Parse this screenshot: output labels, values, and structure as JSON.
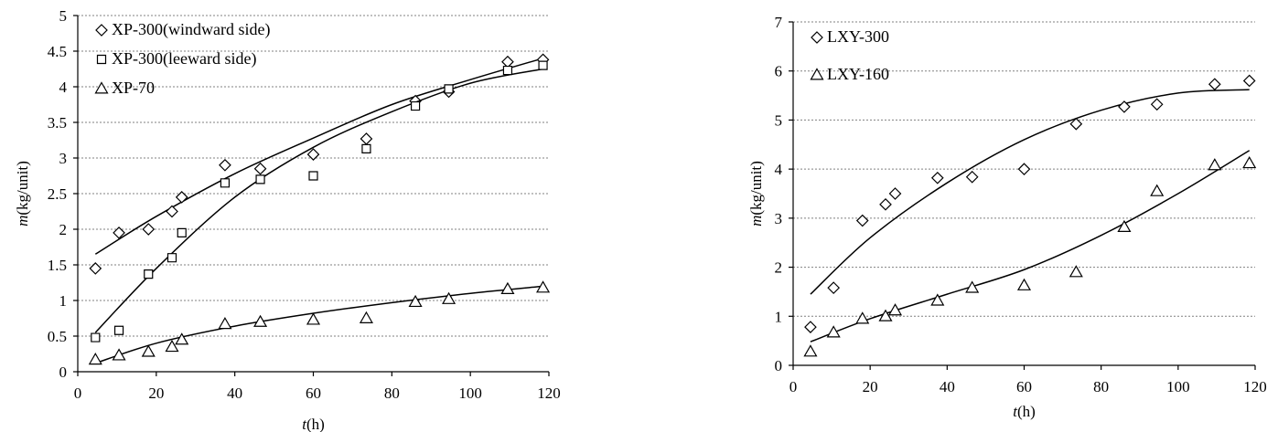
{
  "chart_data": [
    {
      "type": "scatter",
      "xlabel": {
        "var": "t",
        "unit": "(h)"
      },
      "ylabel": {
        "var": "m",
        "unit": "(kg/unit)"
      },
      "xlim": [
        0,
        120
      ],
      "ylim": [
        0,
        5
      ],
      "x_ticks": [
        0,
        20,
        40,
        60,
        80,
        100,
        120
      ],
      "x_tick_labels": [
        "0",
        "20",
        "40",
        "60",
        "80",
        "100",
        "120"
      ],
      "y_ticks": [
        0,
        0.5,
        1,
        1.5,
        2,
        2.5,
        3,
        3.5,
        4,
        4.5,
        5
      ],
      "y_tick_labels": [
        "0",
        "0.5",
        "1",
        "1.5",
        "2",
        "2.5",
        "3",
        "3.5",
        "4",
        "4.5",
        "5"
      ],
      "grid": "horizontal dotted",
      "legend_position": "top-left",
      "series": [
        {
          "name": "XP-300(windward side)",
          "marker": "diamond",
          "x": [
            4.5,
            10.5,
            18,
            24,
            26.5,
            37.5,
            46.5,
            60,
            73.5,
            86,
            94.5,
            109.5,
            118.5
          ],
          "y": [
            1.45,
            1.95,
            2.0,
            2.25,
            2.45,
            2.9,
            2.85,
            3.05,
            3.27,
            3.8,
            3.93,
            4.35,
            4.38
          ],
          "fit": [
            [
              4.5,
              1.65
            ],
            [
              20,
              2.18
            ],
            [
              40,
              2.78
            ],
            [
              60,
              3.28
            ],
            [
              80,
              3.75
            ],
            [
              100,
              4.1
            ],
            [
              118.5,
              4.4
            ]
          ]
        },
        {
          "name": "XP-300(leeward side)",
          "marker": "square",
          "x": [
            4.5,
            10.5,
            18,
            24,
            26.5,
            37.5,
            46.5,
            60,
            73.5,
            86,
            94.5,
            109.5,
            118.5
          ],
          "y": [
            0.48,
            0.58,
            1.37,
            1.6,
            1.95,
            2.65,
            2.7,
            2.75,
            3.13,
            3.73,
            3.97,
            4.23,
            4.3
          ],
          "fit": [
            [
              4.5,
              0.55
            ],
            [
              20,
              1.45
            ],
            [
              40,
              2.45
            ],
            [
              60,
              3.15
            ],
            [
              80,
              3.65
            ],
            [
              100,
              4.05
            ],
            [
              118.5,
              4.25
            ]
          ]
        },
        {
          "name": "XP-70",
          "marker": "triangle",
          "x": [
            4.5,
            10.5,
            18,
            24,
            26.5,
            37.5,
            46.5,
            60,
            73.5,
            86,
            94.5,
            109.5,
            118.5
          ],
          "y": [
            0.17,
            0.23,
            0.28,
            0.35,
            0.45,
            0.67,
            0.7,
            0.73,
            0.75,
            0.98,
            1.02,
            1.16,
            1.18
          ],
          "fit": [
            [
              4.5,
              0.12
            ],
            [
              20,
              0.4
            ],
            [
              40,
              0.64
            ],
            [
              60,
              0.82
            ],
            [
              80,
              0.97
            ],
            [
              100,
              1.1
            ],
            [
              118.5,
              1.2
            ]
          ]
        }
      ]
    },
    {
      "type": "scatter",
      "xlabel": {
        "var": "t",
        "unit": "(h)"
      },
      "ylabel": {
        "var": "m",
        "unit": "(kg/unit)"
      },
      "xlim": [
        0,
        120
      ],
      "ylim": [
        0,
        7
      ],
      "x_ticks": [
        0,
        20,
        40,
        60,
        80,
        100,
        120
      ],
      "x_tick_labels": [
        "0",
        "20",
        "40",
        "60",
        "80",
        "100",
        "120"
      ],
      "y_ticks": [
        0,
        1,
        2,
        3,
        4,
        5,
        6,
        7
      ],
      "y_tick_labels": [
        "0",
        "1",
        "2",
        "3",
        "4",
        "5",
        "6",
        "7"
      ],
      "grid": "horizontal dotted",
      "legend_position": "top-left",
      "series": [
        {
          "name": "LXY-300",
          "marker": "diamond",
          "x": [
            4.5,
            10.5,
            18,
            24,
            26.5,
            37.5,
            46.5,
            60,
            73.5,
            86,
            94.5,
            109.5,
            118.5
          ],
          "y": [
            0.78,
            1.58,
            2.95,
            3.28,
            3.5,
            3.82,
            3.84,
            4.0,
            4.92,
            5.27,
            5.32,
            5.73,
            5.8
          ],
          "fit": [
            [
              4.5,
              1.45
            ],
            [
              20,
              2.6
            ],
            [
              40,
              3.72
            ],
            [
              60,
              4.6
            ],
            [
              80,
              5.2
            ],
            [
              100,
              5.55
            ],
            [
              118.5,
              5.62
            ]
          ]
        },
        {
          "name": "LXY-160",
          "marker": "triangle",
          "x": [
            4.5,
            10.5,
            18,
            24,
            26.5,
            37.5,
            46.5,
            60,
            73.5,
            86,
            94.5,
            109.5,
            118.5
          ],
          "y": [
            0.28,
            0.67,
            0.95,
            1.0,
            1.12,
            1.32,
            1.58,
            1.63,
            1.9,
            2.82,
            3.55,
            4.08,
            4.12
          ],
          "fit": [
            [
              4.5,
              0.48
            ],
            [
              20,
              0.95
            ],
            [
              40,
              1.45
            ],
            [
              60,
              1.95
            ],
            [
              80,
              2.65
            ],
            [
              100,
              3.5
            ],
            [
              118.5,
              4.38
            ]
          ]
        }
      ]
    }
  ]
}
